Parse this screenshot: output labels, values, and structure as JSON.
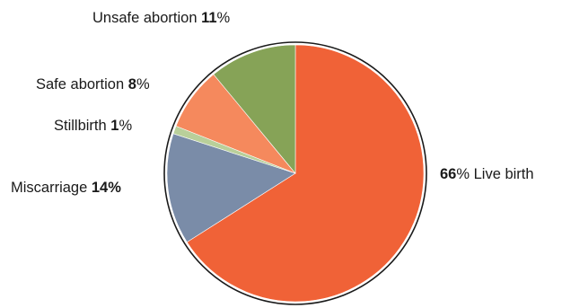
{
  "chart_data": {
    "type": "pie",
    "title": "",
    "unit": "%",
    "start": "12 o'clock, clockwise",
    "slices": [
      {
        "label": "Live birth",
        "value": 66,
        "color": "#f06237"
      },
      {
        "label": "Miscarriage",
        "value": 14,
        "color": "#7a8ca8"
      },
      {
        "label": "Stillbirth",
        "value": 1,
        "color": "#b9cf9a"
      },
      {
        "label": "Safe abortion",
        "value": 8,
        "color": "#f5895d"
      },
      {
        "label": "Unsafe abortion",
        "value": 11,
        "color": "#86a357"
      }
    ]
  },
  "labels": {
    "live_birth": {
      "value": "66",
      "unit": "%",
      "name": " Live birth"
    },
    "miscarriage": {
      "name": "Miscarriage ",
      "value": "14%"
    },
    "stillbirth": {
      "name": "Stillbirth ",
      "value": "1",
      "unit": "%"
    },
    "safe_abortion": {
      "name": "Safe abortion ",
      "value": "8",
      "unit": "%"
    },
    "unsafe_abortion": {
      "name": "Unsafe abortion ",
      "value": "11",
      "unit": "%"
    }
  }
}
